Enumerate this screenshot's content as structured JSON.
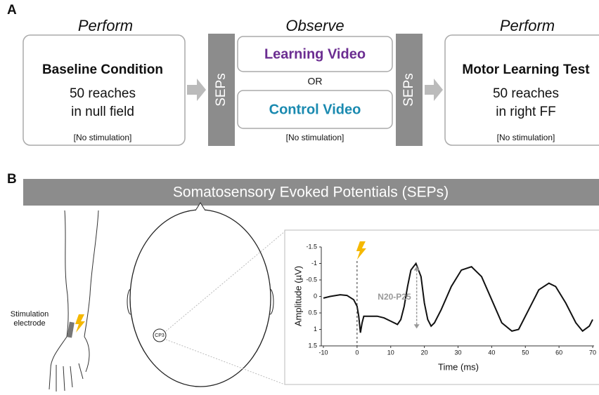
{
  "panel_a": {
    "label": "A",
    "steps": [
      {
        "heading": "Perform",
        "title": "Baseline Condition",
        "lines": [
          "50 reaches",
          "in null field"
        ],
        "note": "[No stimulation]"
      },
      {
        "heading": "Observe",
        "options": [
          "Learning Video",
          "Control Video"
        ],
        "separator": "OR",
        "note": "[No stimulation]"
      },
      {
        "heading": "Perform",
        "title": "Motor Learning Test",
        "lines": [
          "50 reaches",
          "in right FF"
        ],
        "note": "[No stimulation]"
      }
    ],
    "sep_labels": [
      "SEPs",
      "SEPs"
    ]
  },
  "panel_b": {
    "label": "B",
    "banner": "Somatosensory Evoked Potentials (SEPs)",
    "electrode_label": [
      "Stimulation",
      "electrode"
    ],
    "electrode_site": "CP3",
    "chart": {
      "type": "line",
      "x": [
        -10,
        -8,
        -5,
        -3,
        -1,
        0,
        0.5,
        1,
        1.5,
        2,
        4,
        6,
        8,
        10,
        12,
        13,
        14,
        15,
        16,
        17.5,
        19,
        20,
        21,
        22,
        23,
        25,
        28,
        31,
        34,
        37,
        40,
        43,
        46,
        48,
        51,
        54,
        57,
        59,
        62,
        65,
        67,
        69,
        70
      ],
      "values": [
        0.05,
        0.0,
        -0.05,
        -0.03,
        0.1,
        0.3,
        0.6,
        1.1,
        0.8,
        0.6,
        0.6,
        0.6,
        0.65,
        0.75,
        0.85,
        0.7,
        0.3,
        -0.3,
        -0.8,
        -1.0,
        -0.6,
        0.2,
        0.7,
        0.9,
        0.8,
        0.4,
        -0.3,
        -0.8,
        -0.9,
        -0.6,
        0.1,
        0.8,
        1.05,
        1.0,
        0.4,
        -0.2,
        -0.4,
        -0.3,
        0.2,
        0.8,
        1.05,
        0.9,
        0.7
      ],
      "xlim": [
        -10,
        70
      ],
      "ylim": [
        1.5,
        -1.5
      ],
      "xticks": [
        -10,
        0,
        10,
        20,
        30,
        40,
        50,
        60,
        70
      ],
      "yticks": [
        -1.5,
        -1,
        -0.5,
        0,
        0.5,
        1,
        1.5
      ],
      "xlabel": "Time (ms)",
      "ylabel": "Amplitude (µV)",
      "annotation": "N20-P25",
      "color": "#111111"
    }
  }
}
